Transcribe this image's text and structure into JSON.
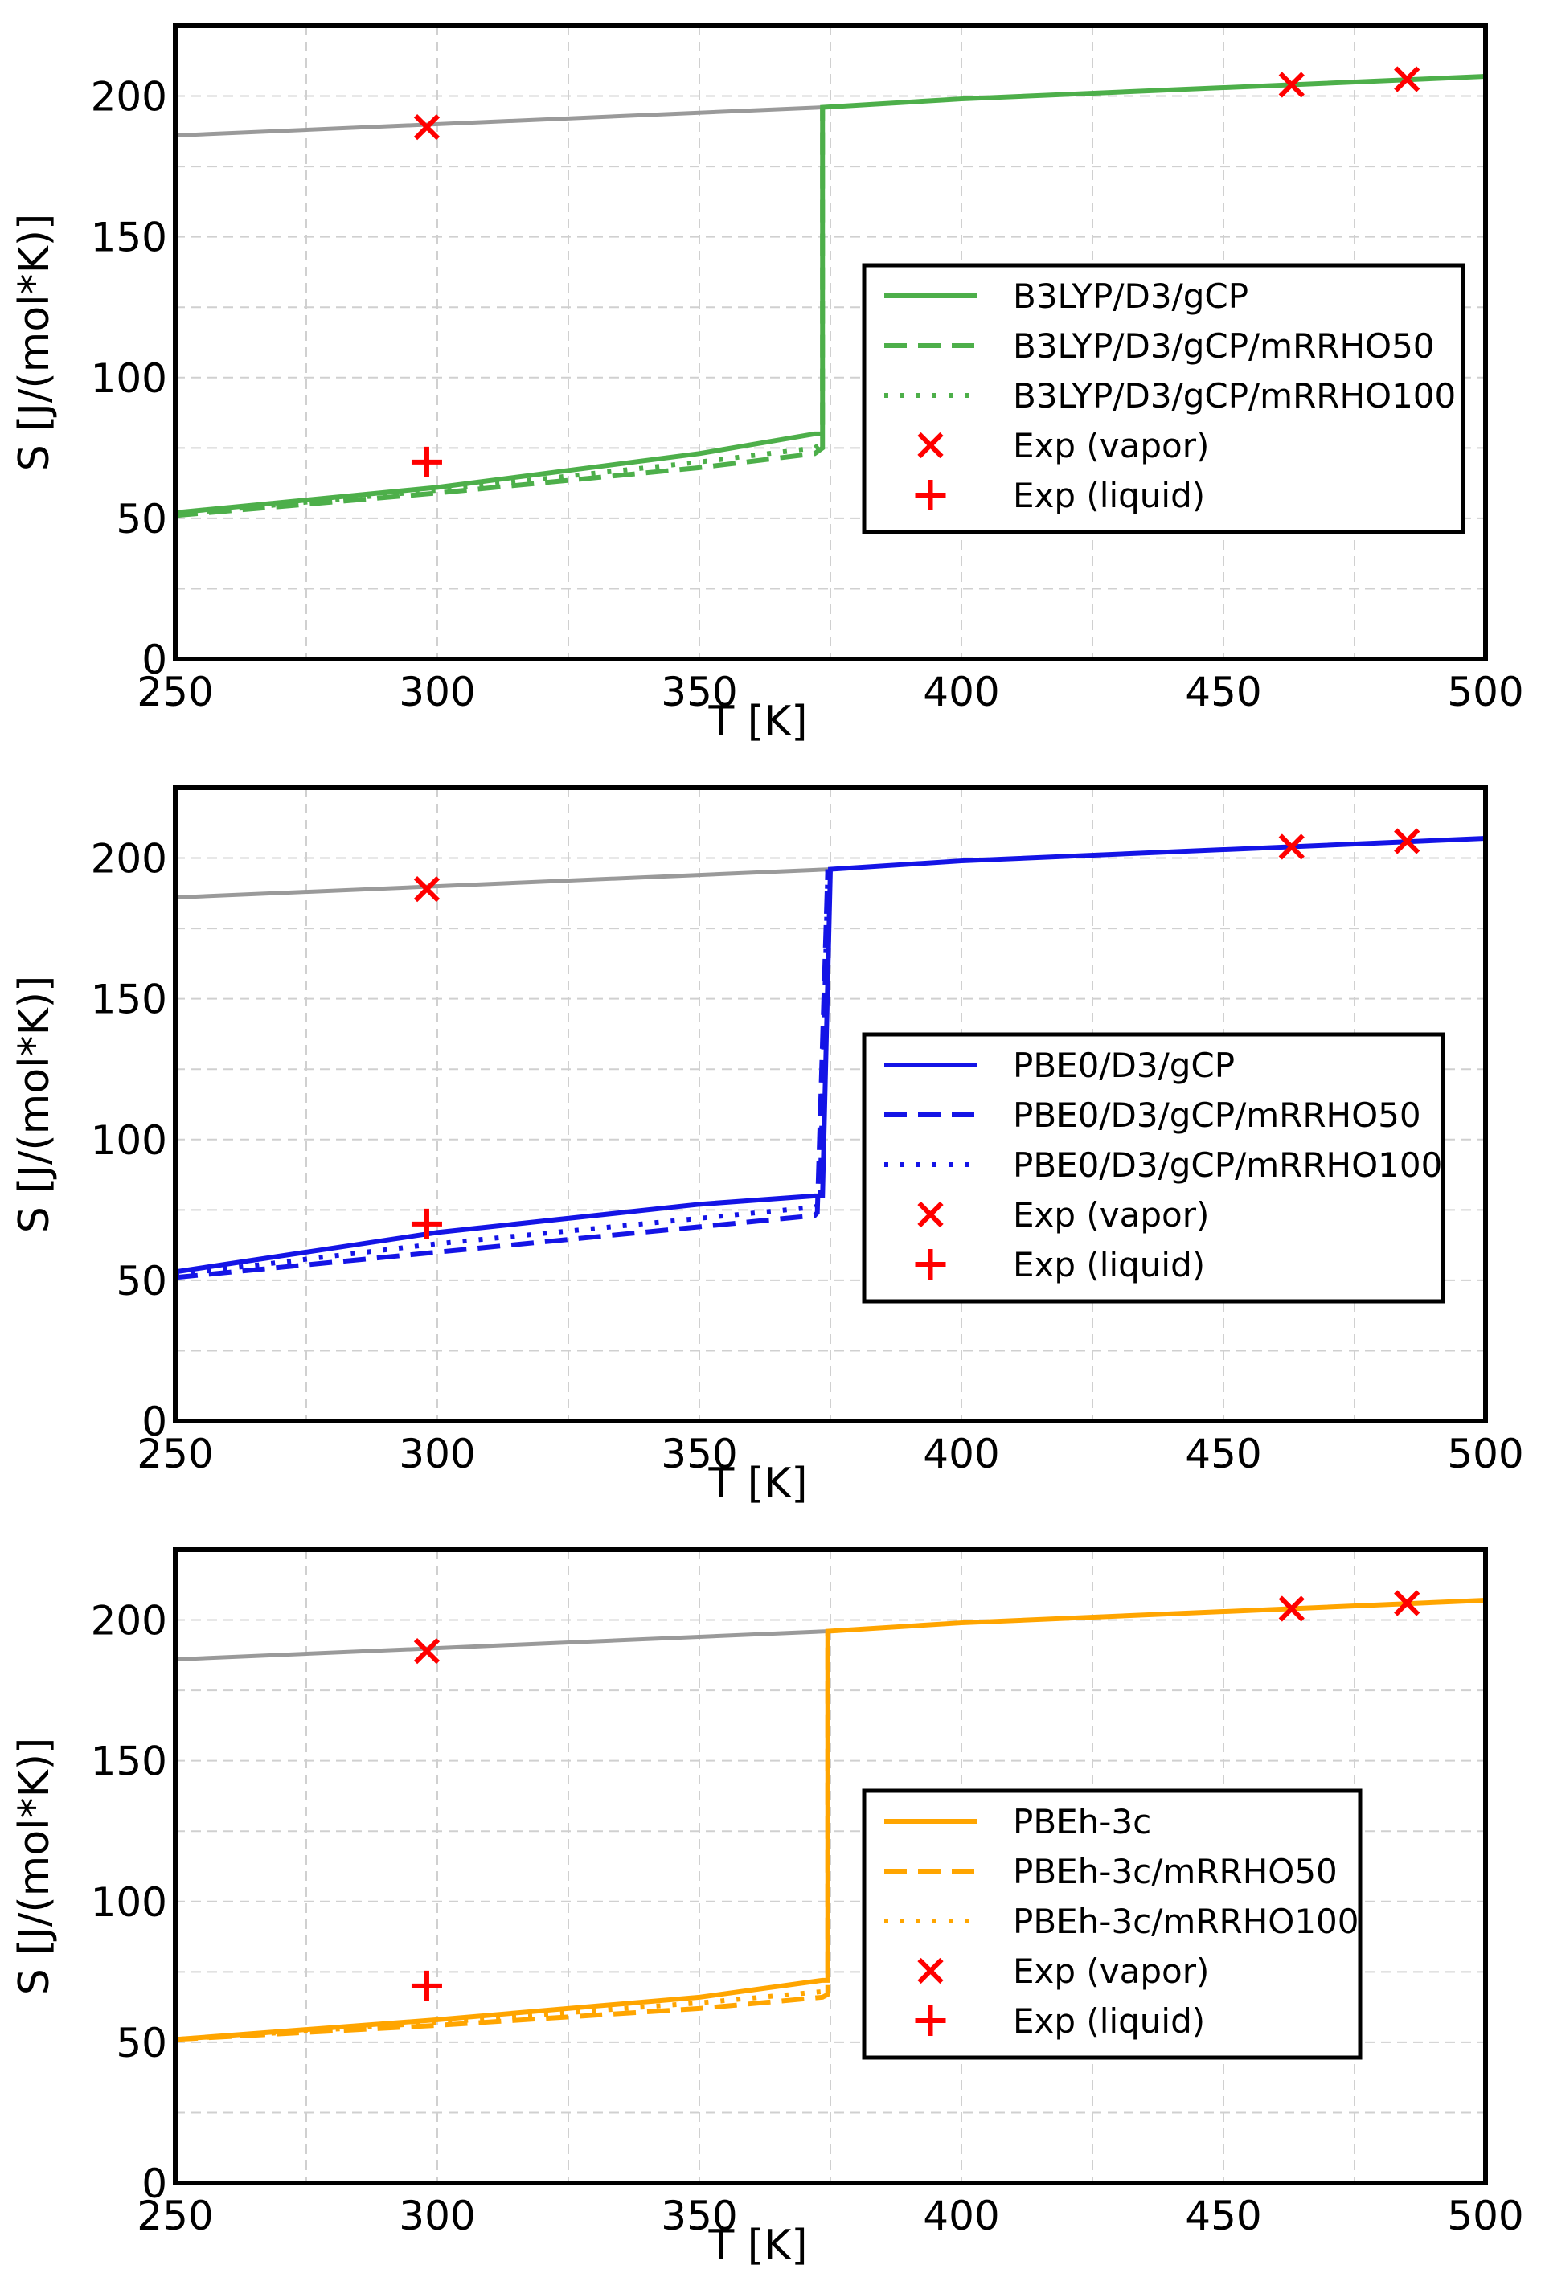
{
  "chart_data": [
    {
      "type": "line",
      "panel": "top",
      "xlabel": "T [K]",
      "ylabel": "S [J/(mol*K)]",
      "xlim": [
        250,
        500
      ],
      "ylim": [
        0,
        225
      ],
      "xticks": [
        "250",
        "300",
        "350",
        "400",
        "450",
        "500"
      ],
      "yticks": [
        "0",
        "50",
        "100",
        "150",
        "200"
      ],
      "grid": true,
      "legend_position": "center-right",
      "color": "#4daf4a",
      "series": [
        {
          "name": "B3LYP/D3/gCP",
          "style": "solid",
          "x": [
            250,
            300,
            350,
            372,
            373.5,
            373.5,
            400,
            450,
            500
          ],
          "y": [
            52,
            61,
            73,
            80,
            80,
            196,
            199,
            203,
            207
          ]
        },
        {
          "name": "B3LYP/D3/gCP/mRRHO50",
          "style": "dashed",
          "x": [
            250,
            300,
            350,
            372,
            373.5,
            373.5
          ],
          "y": [
            51,
            59,
            68,
            73,
            75,
            196
          ]
        },
        {
          "name": "B3LYP/D3/gCP/mRRHO100",
          "style": "dotted",
          "x": [
            250,
            300,
            350,
            372,
            373.5
          ],
          "y": [
            51.5,
            60,
            70,
            75,
            77
          ]
        },
        {
          "name": "Exp (vapor)",
          "style": "x-marker",
          "x": [
            298,
            463,
            485
          ],
          "y": [
            189,
            204,
            206
          ]
        },
        {
          "name": "Exp (liquid)",
          "style": "plus-marker",
          "x": [
            298
          ],
          "y": [
            70
          ]
        }
      ],
      "gray_reference": {
        "x": [
          250,
          373.5
        ],
        "y": [
          186,
          196
        ]
      }
    },
    {
      "type": "line",
      "panel": "middle",
      "xlabel": "T [K]",
      "ylabel": "S [J/(mol*K)]",
      "xlim": [
        250,
        500
      ],
      "ylim": [
        0,
        225
      ],
      "xticks": [
        "250",
        "300",
        "350",
        "400",
        "450",
        "500"
      ],
      "yticks": [
        "0",
        "50",
        "100",
        "150",
        "200"
      ],
      "grid": true,
      "legend_position": "center-right",
      "color": "#1414e6",
      "series": [
        {
          "name": "PBE0/D3/gCP",
          "style": "solid",
          "x": [
            250,
            300,
            350,
            372,
            373.5,
            375,
            400,
            450,
            500
          ],
          "y": [
            53,
            67,
            77,
            80,
            80,
            196,
            199,
            203,
            207
          ]
        },
        {
          "name": "PBE0/D3/gCP/mRRHO50",
          "style": "dashed",
          "x": [
            250,
            300,
            350,
            372,
            372.5,
            374.5
          ],
          "y": [
            51,
            60,
            69,
            73,
            74,
            196
          ]
        },
        {
          "name": "PBE0/D3/gCP/mRRHO100",
          "style": "dotted",
          "x": [
            250,
            300,
            350,
            372,
            373,
            374.5
          ],
          "y": [
            52,
            63,
            72,
            76,
            77,
            196
          ]
        },
        {
          "name": "Exp (vapor)",
          "style": "x-marker",
          "x": [
            298,
            463,
            485
          ],
          "y": [
            189,
            204,
            206
          ]
        },
        {
          "name": "Exp (liquid)",
          "style": "plus-marker",
          "x": [
            298
          ],
          "y": [
            70
          ]
        }
      ],
      "gray_reference": {
        "x": [
          250,
          375
        ],
        "y": [
          186,
          196
        ]
      }
    },
    {
      "type": "line",
      "panel": "bottom",
      "xlabel": "T [K]",
      "ylabel": "S [J/(mol*K)]",
      "xlim": [
        250,
        500
      ],
      "ylim": [
        0,
        225
      ],
      "xticks": [
        "250",
        "300",
        "350",
        "400",
        "450",
        "500"
      ],
      "yticks": [
        "0",
        "50",
        "100",
        "150",
        "200"
      ],
      "grid": true,
      "legend_position": "center-right",
      "color": "#ffa500",
      "series": [
        {
          "name": "PBEh-3c",
          "style": "solid",
          "x": [
            250,
            300,
            350,
            373.5,
            374.5,
            374.5,
            400,
            450,
            500
          ],
          "y": [
            51,
            58,
            66,
            72,
            72,
            196,
            199,
            203,
            207
          ]
        },
        {
          "name": "PBEh-3c/mRRHO50",
          "style": "dashed",
          "x": [
            250,
            300,
            350,
            373.5,
            374.5,
            374.5
          ],
          "y": [
            51,
            56,
            62,
            66,
            67,
            196
          ]
        },
        {
          "name": "PBEh-3c/mRRHO100",
          "style": "dotted",
          "x": [
            250,
            300,
            350,
            373.5,
            374.5
          ],
          "y": [
            51,
            57,
            64,
            68,
            69
          ]
        },
        {
          "name": "Exp (vapor)",
          "style": "x-marker",
          "x": [
            298,
            463,
            485
          ],
          "y": [
            189,
            204,
            206
          ]
        },
        {
          "name": "Exp (liquid)",
          "style": "plus-marker",
          "x": [
            298
          ],
          "y": [
            70
          ]
        }
      ],
      "gray_reference": {
        "x": [
          250,
          374.5
        ],
        "y": [
          186,
          196
        ]
      }
    }
  ],
  "colors": {
    "gray": "#9a9a9a",
    "exp": "#ff0000",
    "grid": "#d0d0d0",
    "frame": "#000000"
  }
}
